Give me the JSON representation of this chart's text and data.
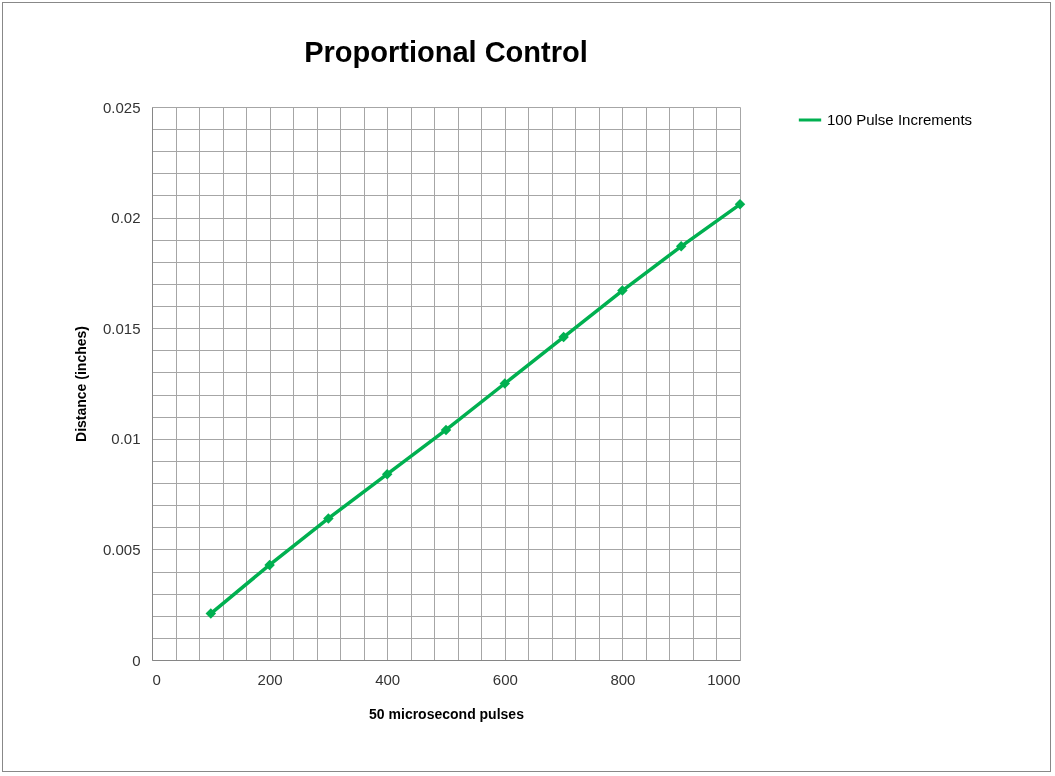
{
  "chart_data": {
    "type": "line",
    "title": "Proportional Control",
    "xlabel": "50 microsecond pulses",
    "ylabel": "Distance (inches)",
    "x": [
      100,
      200,
      300,
      400,
      500,
      600,
      700,
      800,
      900,
      1000
    ],
    "series": [
      {
        "name": "100 Pulse Increments",
        "color": "#00b050",
        "values": [
          0.0021,
          0.0043,
          0.0064,
          0.0084,
          0.0104,
          0.0125,
          0.0146,
          0.0167,
          0.0187,
          0.0206
        ]
      }
    ],
    "xlim": [
      0,
      1000
    ],
    "xticks": [
      0,
      {
        "value": 40,
        "label": null
      },
      {
        "value": 80,
        "label": null
      },
      {
        "value": 120,
        "label": null
      },
      {
        "value": 160,
        "label": null
      },
      200,
      {
        "value": 240,
        "label": null
      },
      {
        "value": 280,
        "label": null
      },
      {
        "value": 320,
        "label": null
      },
      {
        "value": 360,
        "label": null
      },
      400,
      {
        "value": 440,
        "label": null
      },
      {
        "value": 480,
        "label": null
      },
      {
        "value": 520,
        "label": null
      },
      {
        "value": 560,
        "label": null
      },
      600,
      {
        "value": 640,
        "label": null
      },
      {
        "value": 680,
        "label": null
      },
      {
        "value": 720,
        "label": null
      },
      {
        "value": 760,
        "label": null
      },
      800,
      {
        "value": 840,
        "label": null
      },
      {
        "value": 880,
        "label": null
      },
      {
        "value": 920,
        "label": null
      },
      {
        "value": 960,
        "label": null
      },
      1000
    ],
    "ylim": [
      0,
      0.025
    ],
    "yticks": [
      0,
      {
        "value": 0.001,
        "label": null
      },
      {
        "value": 0.002,
        "label": null
      },
      {
        "value": 0.003,
        "label": null
      },
      {
        "value": 0.004,
        "label": null
      },
      0.005,
      {
        "value": 0.006,
        "label": null
      },
      {
        "value": 0.007,
        "label": null
      },
      {
        "value": 0.008,
        "label": null
      },
      {
        "value": 0.009,
        "label": null
      },
      0.01,
      {
        "value": 0.011,
        "label": null
      },
      {
        "value": 0.012,
        "label": null
      },
      {
        "value": 0.013,
        "label": null
      },
      {
        "value": 0.014,
        "label": null
      },
      0.015,
      {
        "value": 0.016,
        "label": null
      },
      {
        "value": 0.017,
        "label": null
      },
      {
        "value": 0.018,
        "label": null
      },
      {
        "value": 0.019,
        "label": null
      },
      0.02,
      {
        "value": 0.021,
        "label": null
      },
      {
        "value": 0.022,
        "label": null
      },
      {
        "value": 0.023,
        "label": null
      },
      {
        "value": 0.024,
        "label": null
      },
      0.025
    ],
    "grid": true,
    "legend": "right",
    "marker": "diamond",
    "line_style": "solid"
  }
}
